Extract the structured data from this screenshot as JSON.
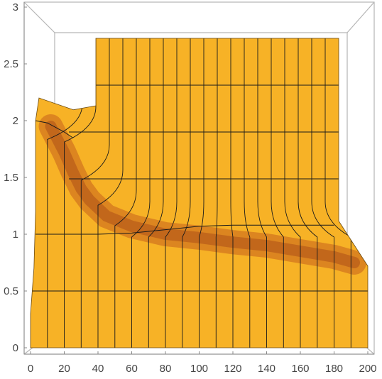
{
  "chart_data": {
    "type": "area",
    "title": "",
    "xlabel": "",
    "ylabel": "",
    "x_ticks": [
      "0",
      "20",
      "40",
      "60",
      "80",
      "100",
      "120",
      "140",
      "160",
      "180",
      "200"
    ],
    "y_ticks": [
      "0",
      "0.5",
      "1",
      "1.5",
      "2",
      "2.5",
      "3"
    ],
    "xlim": [
      0,
      200
    ],
    "ylim": [
      0,
      3
    ],
    "grid": false,
    "legend": "none",
    "view": "3D box seen from front",
    "surface": {
      "front_profile": {
        "x": [
          0,
          3,
          5,
          8,
          12,
          18,
          24,
          30,
          40,
          50,
          60,
          70,
          80,
          90,
          100,
          120,
          140,
          160,
          180,
          190,
          196,
          200
        ],
        "y": [
          0.35,
          0.7,
          1.2,
          1.9,
          2.02,
          1.98,
          1.85,
          1.6,
          1.38,
          1.2,
          1.1,
          1.06,
          1.04,
          1.03,
          1.02,
          1.01,
          0.99,
          0.95,
          0.88,
          0.8,
          0.75,
          0.72
        ]
      },
      "back_profile": {
        "x": [
          0,
          5,
          10,
          15,
          18,
          20,
          200
        ],
        "y": [
          2.18,
          2.22,
          2.24,
          2.26,
          2.28,
          3.0,
          3.0
        ]
      },
      "mesh_curves": [
        {
          "x": [
            3,
            10,
            20,
            25
          ],
          "y": [
            2.0,
            1.98,
            1.9,
            1.85
          ]
        },
        {
          "x": [
            3,
            20,
            40,
            60,
            80,
            100,
            120,
            140,
            160,
            180
          ],
          "y": [
            1.0,
            1.0,
            1.0,
            1.01,
            1.04,
            1.07,
            1.08,
            1.08,
            1.08,
            1.08
          ]
        }
      ],
      "ridge": {
        "x": [
          12,
          20,
          25,
          30,
          35,
          45,
          60,
          80,
          100,
          120,
          140,
          160,
          180,
          192
        ],
        "y": [
          1.95,
          1.72,
          1.55,
          1.4,
          1.3,
          1.16,
          1.07,
          1.0,
          0.97,
          0.93,
          0.9,
          0.85,
          0.8,
          0.75
        ]
      },
      "colors": {
        "surface": "#f7b226",
        "dark_band": "#c6601c",
        "mesh_line": "#1a1a1a",
        "box_line": "#b5b5b5",
        "axis_line": "#888888"
      }
    }
  }
}
